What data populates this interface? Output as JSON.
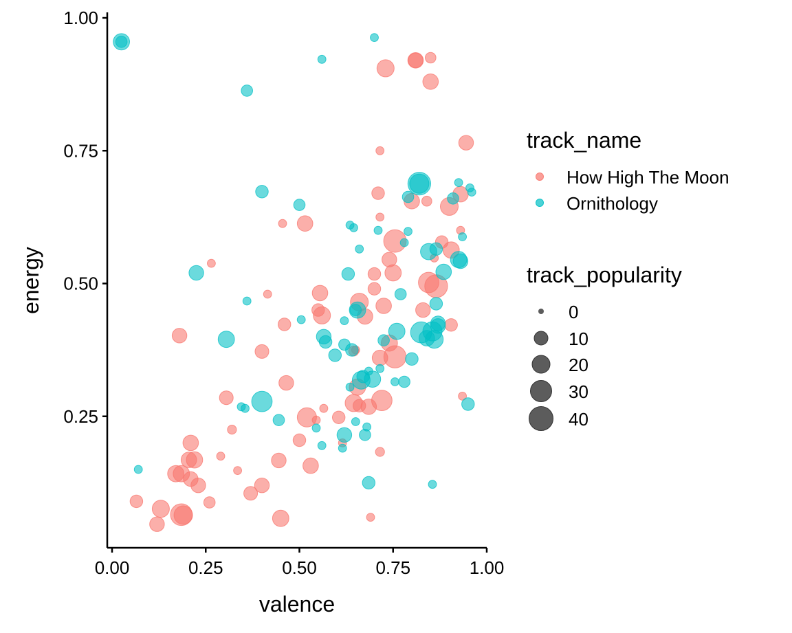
{
  "chart_data": {
    "type": "scatter",
    "title": "",
    "xlabel": "valence",
    "ylabel": "energy",
    "xlim": [
      -0.01,
      1.0
    ],
    "ylim": [
      0.0,
      1.01
    ],
    "x_ticks": [
      "0.00",
      "0.25",
      "0.50",
      "0.75",
      "1.00"
    ],
    "y_ticks": [
      "0.25",
      "0.50",
      "0.75",
      "1.00"
    ],
    "grid": false,
    "legend_placement": "right",
    "color_legend": {
      "title": "track_name",
      "entries": [
        {
          "name": "How High The Moon",
          "color": "#F8766D"
        },
        {
          "name": "Ornithology",
          "color": "#00BFC4"
        }
      ]
    },
    "size_legend": {
      "title": "track_popularity",
      "values": [
        "0",
        "10",
        "20",
        "30",
        "40"
      ],
      "color": "#333333"
    },
    "series": [
      {
        "name": "How High The Moon",
        "color": "#F8766D",
        "points": [
          [
            0.81,
            0.92,
            14
          ],
          [
            0.81,
            0.92,
            12
          ],
          [
            0.85,
            0.925,
            5
          ],
          [
            0.73,
            0.905,
            18
          ],
          [
            0.85,
            0.88,
            14
          ],
          [
            0.945,
            0.765,
            12
          ],
          [
            0.715,
            0.75,
            2
          ],
          [
            0.71,
            0.67,
            8
          ],
          [
            0.8,
            0.655,
            14
          ],
          [
            0.84,
            0.655,
            4
          ],
          [
            0.9,
            0.645,
            20
          ],
          [
            0.93,
            0.668,
            14
          ],
          [
            0.715,
            0.625,
            2
          ],
          [
            0.515,
            0.613,
            14
          ],
          [
            0.455,
            0.613,
            2
          ],
          [
            0.93,
            0.6,
            2
          ],
          [
            0.755,
            0.58,
            35
          ],
          [
            0.88,
            0.578,
            8
          ],
          [
            0.86,
            0.548,
            2
          ],
          [
            0.905,
            0.563,
            16
          ],
          [
            0.265,
            0.538,
            2
          ],
          [
            0.74,
            0.545,
            12
          ],
          [
            0.75,
            0.52,
            16
          ],
          [
            0.7,
            0.518,
            8
          ],
          [
            0.845,
            0.502,
            28
          ],
          [
            0.865,
            0.495,
            36
          ],
          [
            0.555,
            0.482,
            14
          ],
          [
            0.7,
            0.49,
            8
          ],
          [
            0.415,
            0.48,
            2
          ],
          [
            0.66,
            0.465,
            20
          ],
          [
            0.725,
            0.458,
            14
          ],
          [
            0.83,
            0.45,
            12
          ],
          [
            0.55,
            0.45,
            8
          ],
          [
            0.56,
            0.44,
            18
          ],
          [
            0.675,
            0.438,
            14
          ],
          [
            0.46,
            0.423,
            8
          ],
          [
            0.905,
            0.422,
            8
          ],
          [
            0.18,
            0.402,
            12
          ],
          [
            0.74,
            0.388,
            16
          ],
          [
            0.755,
            0.362,
            34
          ],
          [
            0.715,
            0.36,
            14
          ],
          [
            0.4,
            0.372,
            10
          ],
          [
            0.645,
            0.373,
            4
          ],
          [
            0.65,
            0.375,
            2
          ],
          [
            0.465,
            0.313,
            12
          ],
          [
            0.655,
            0.305,
            16
          ],
          [
            0.305,
            0.285,
            10
          ],
          [
            0.72,
            0.28,
            28
          ],
          [
            0.645,
            0.275,
            18
          ],
          [
            0.66,
            0.27,
            8
          ],
          [
            0.685,
            0.268,
            14
          ],
          [
            0.565,
            0.265,
            2
          ],
          [
            0.935,
            0.288,
            2
          ],
          [
            0.52,
            0.248,
            24
          ],
          [
            0.605,
            0.248,
            8
          ],
          [
            0.545,
            0.243,
            2
          ],
          [
            0.21,
            0.2,
            14
          ],
          [
            0.5,
            0.205,
            8
          ],
          [
            0.32,
            0.225,
            3
          ],
          [
            0.615,
            0.2,
            2
          ],
          [
            0.205,
            0.168,
            14
          ],
          [
            0.22,
            0.168,
            16
          ],
          [
            0.29,
            0.175,
            2
          ],
          [
            0.445,
            0.167,
            12
          ],
          [
            0.715,
            0.183,
            3
          ],
          [
            0.17,
            0.142,
            16
          ],
          [
            0.185,
            0.142,
            16
          ],
          [
            0.21,
            0.132,
            12
          ],
          [
            0.23,
            0.12,
            12
          ],
          [
            0.335,
            0.148,
            2
          ],
          [
            0.53,
            0.157,
            14
          ],
          [
            0.4,
            0.12,
            12
          ],
          [
            0.37,
            0.105,
            10
          ],
          [
            0.26,
            0.088,
            6
          ],
          [
            0.065,
            0.09,
            8
          ],
          [
            0.13,
            0.076,
            18
          ],
          [
            0.185,
            0.065,
            32
          ],
          [
            0.19,
            0.064,
            22
          ],
          [
            0.45,
            0.058,
            16
          ],
          [
            0.12,
            0.047,
            12
          ],
          [
            0.69,
            0.06,
            2
          ]
        ]
      },
      {
        "name": "Ornithology",
        "color": "#00BFC4",
        "points": [
          [
            0.025,
            0.955,
            16
          ],
          [
            0.025,
            0.955,
            6
          ],
          [
            0.7,
            0.963,
            2
          ],
          [
            0.56,
            0.922,
            2
          ],
          [
            0.36,
            0.863,
            6
          ],
          [
            0.82,
            0.688,
            36
          ],
          [
            0.82,
            0.688,
            24
          ],
          [
            0.4,
            0.673,
            8
          ],
          [
            0.79,
            0.663,
            6
          ],
          [
            0.925,
            0.69,
            2
          ],
          [
            0.955,
            0.68,
            2
          ],
          [
            0.96,
            0.672,
            2
          ],
          [
            0.91,
            0.66,
            6
          ],
          [
            0.5,
            0.648,
            6
          ],
          [
            0.635,
            0.61,
            2
          ],
          [
            0.645,
            0.605,
            2
          ],
          [
            0.71,
            0.6,
            2
          ],
          [
            0.79,
            0.598,
            2
          ],
          [
            0.78,
            0.577,
            2
          ],
          [
            0.935,
            0.588,
            2
          ],
          [
            0.865,
            0.565,
            8
          ],
          [
            0.845,
            0.56,
            16
          ],
          [
            0.66,
            0.565,
            2
          ],
          [
            0.925,
            0.545,
            16
          ],
          [
            0.93,
            0.542,
            12
          ],
          [
            0.225,
            0.52,
            12
          ],
          [
            0.63,
            0.518,
            8
          ],
          [
            0.885,
            0.522,
            14
          ],
          [
            0.77,
            0.48,
            6
          ],
          [
            0.36,
            0.467,
            2
          ],
          [
            0.865,
            0.462,
            8
          ],
          [
            0.655,
            0.45,
            16
          ],
          [
            0.65,
            0.45,
            6
          ],
          [
            0.855,
            0.41,
            24
          ],
          [
            0.76,
            0.41,
            16
          ],
          [
            0.87,
            0.42,
            12
          ],
          [
            0.87,
            0.425,
            12
          ],
          [
            0.62,
            0.43,
            2
          ],
          [
            0.505,
            0.432,
            2
          ],
          [
            0.565,
            0.4,
            12
          ],
          [
            0.825,
            0.408,
            30
          ],
          [
            0.86,
            0.395,
            20
          ],
          [
            0.84,
            0.397,
            14
          ],
          [
            0.305,
            0.395,
            16
          ],
          [
            0.57,
            0.39,
            8
          ],
          [
            0.62,
            0.385,
            6
          ],
          [
            0.725,
            0.393,
            6
          ],
          [
            0.64,
            0.375,
            8
          ],
          [
            0.595,
            0.365,
            8
          ],
          [
            0.8,
            0.358,
            8
          ],
          [
            0.715,
            0.34,
            2
          ],
          [
            0.685,
            0.335,
            2
          ],
          [
            0.695,
            0.32,
            16
          ],
          [
            0.665,
            0.318,
            20
          ],
          [
            0.67,
            0.325,
            8
          ],
          [
            0.755,
            0.315,
            2
          ],
          [
            0.78,
            0.315,
            6
          ],
          [
            0.635,
            0.305,
            2
          ],
          [
            0.4,
            0.278,
            28
          ],
          [
            0.345,
            0.268,
            2
          ],
          [
            0.355,
            0.265,
            2
          ],
          [
            0.445,
            0.243,
            6
          ],
          [
            0.95,
            0.273,
            8
          ],
          [
            0.68,
            0.23,
            2
          ],
          [
            0.545,
            0.228,
            2
          ],
          [
            0.65,
            0.24,
            2
          ],
          [
            0.62,
            0.215,
            12
          ],
          [
            0.675,
            0.215,
            6
          ],
          [
            0.56,
            0.195,
            2
          ],
          [
            0.615,
            0.19,
            2
          ],
          [
            0.07,
            0.15,
            2
          ],
          [
            0.685,
            0.125,
            8
          ],
          [
            0.855,
            0.122,
            2
          ]
        ]
      }
    ]
  }
}
